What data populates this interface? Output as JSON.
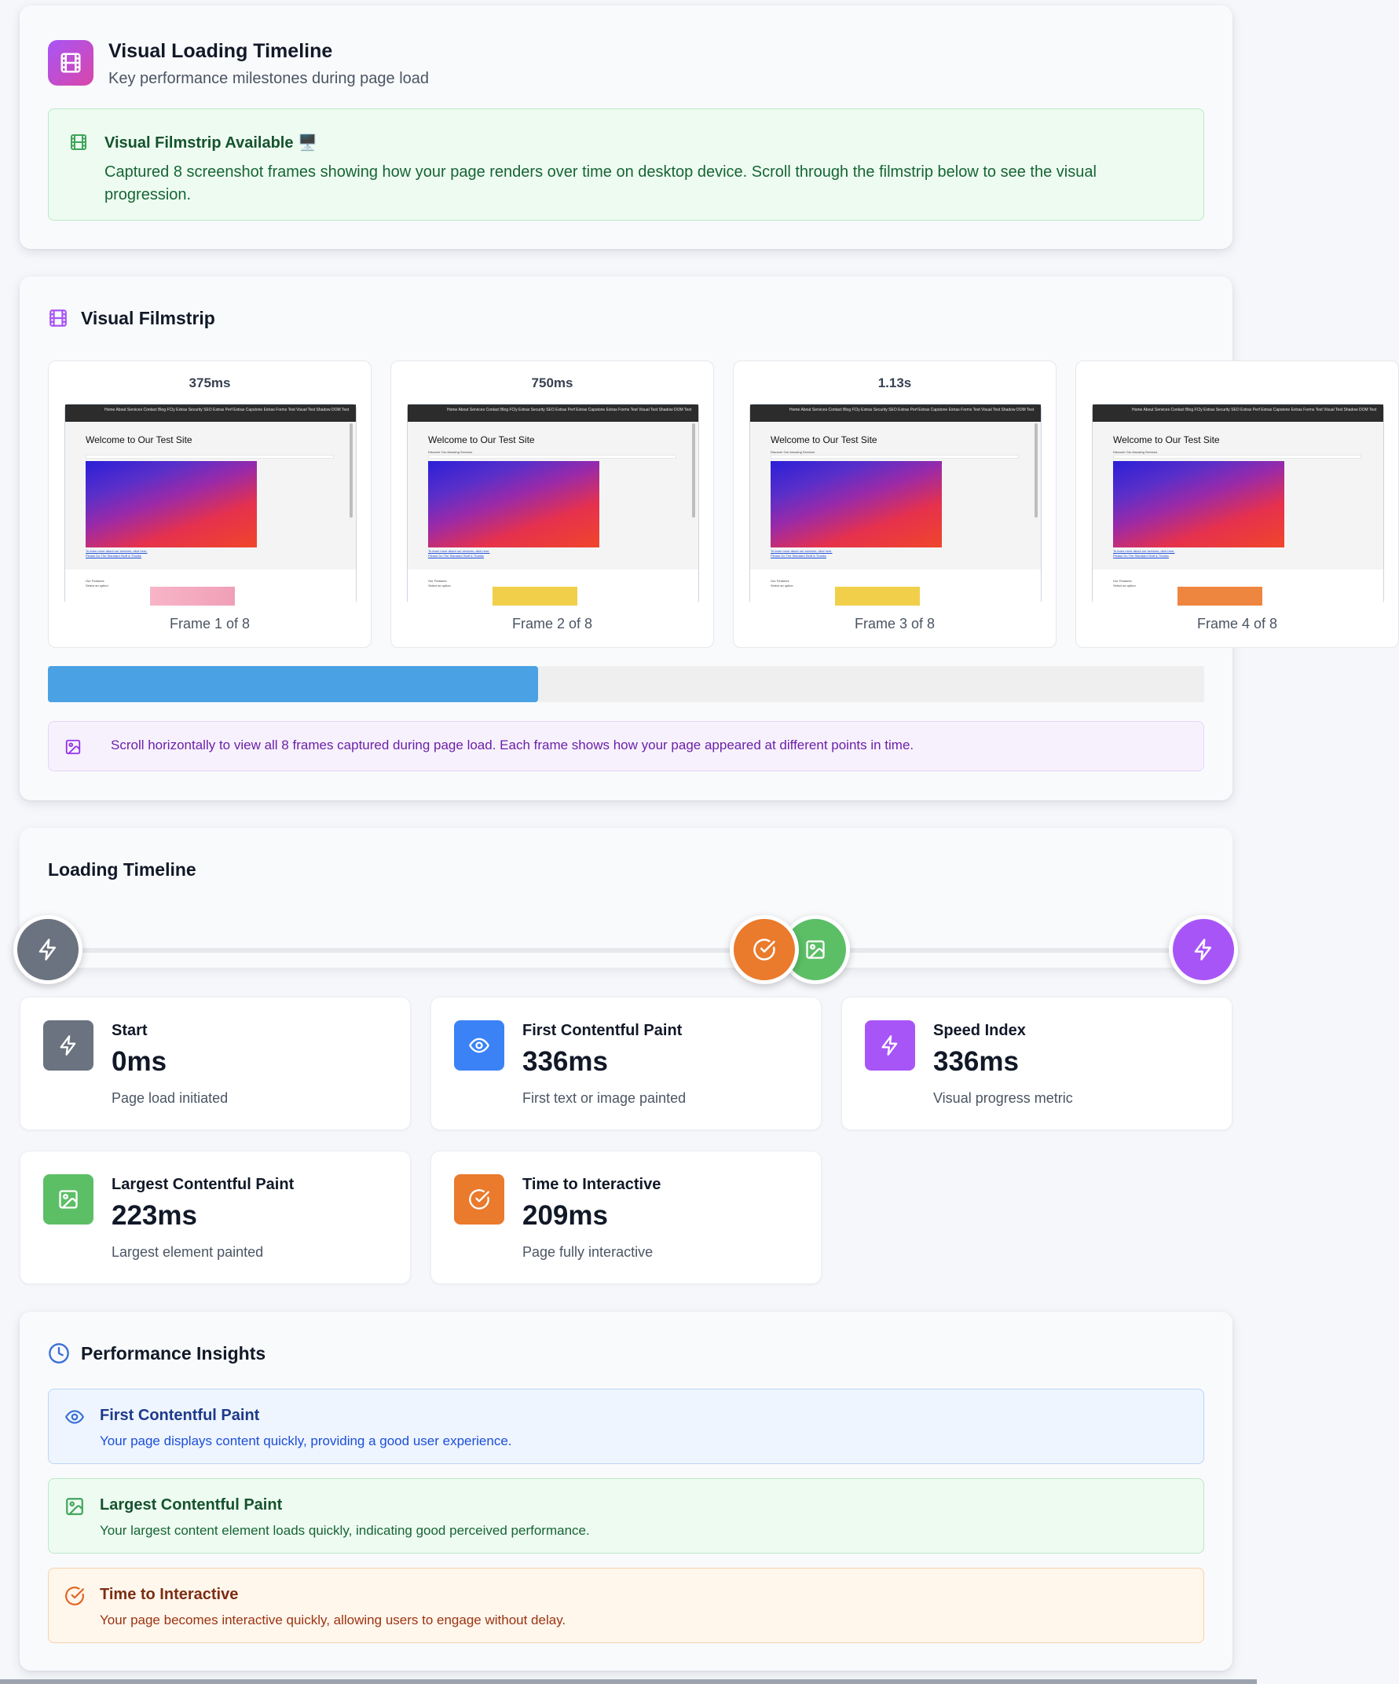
{
  "header": {
    "title": "Visual Loading Timeline",
    "subtitle": "Key performance milestones during page load",
    "icon": "film-icon"
  },
  "filmstrip_notice": {
    "title": "Visual Filmstrip Available 🖥️",
    "description": "Captured 8 screenshot frames showing how your page renders over time on desktop device. Scroll through the filmstrip below to see the visual progression."
  },
  "filmstrip": {
    "title": "Visual Filmstrip",
    "frames": [
      {
        "time": "375ms",
        "label": "Frame 1 of 8"
      },
      {
        "time": "750ms",
        "label": "Frame 2 of 8"
      },
      {
        "time": "1.13s",
        "label": "Frame 3 of 8"
      },
      {
        "time": "",
        "label": "Frame 4 of 8"
      }
    ],
    "screenshot": {
      "nav": "Home  About  Services  Contact  Blog  FCly Extras  Security  SEO Extras  Perf Extras  Capstone Extras  Forms Test  Visual Test  Shadow DOM Test",
      "welcome": "Welcome to Our Test Site",
      "subtext": "Discover Our Amazing Services",
      "links": "To learn more about our services, click here.",
      "links2": "Please Do The Standard Stuff & Thanks",
      "footer_text": "Our Features",
      "footer_sub": "Select an option"
    },
    "scroll_progress": 0.424,
    "hint": "Scroll horizontally to view all 8 frames captured during page load. Each frame shows how your page appeared at different points in time."
  },
  "timeline": {
    "title": "Loading Timeline",
    "metrics": [
      {
        "title": "Start",
        "value": "0ms",
        "description": "Page load initiated",
        "color": "#6b7280",
        "icon": "lightning-icon"
      },
      {
        "title": "First Contentful Paint",
        "value": "336ms",
        "description": "First text or image painted",
        "color": "#3b82f6",
        "icon": "eye-icon"
      },
      {
        "title": "Speed Index",
        "value": "336ms",
        "description": "Visual progress metric",
        "color": "#a855f7",
        "icon": "lightning-icon"
      },
      {
        "title": "Largest Contentful Paint",
        "value": "223ms",
        "description": "Largest element painted",
        "color": "#5cbf66",
        "icon": "image-icon"
      },
      {
        "title": "Time to Interactive",
        "value": "209ms",
        "description": "Page fully interactive",
        "color": "#ea7a2c",
        "icon": "check-circle-icon"
      }
    ]
  },
  "insights": {
    "title": "Performance Insights",
    "items": [
      {
        "title": "First Contentful Paint",
        "description": "Your page displays content quickly, providing a good user experience.",
        "icon": "eye-icon"
      },
      {
        "title": "Largest Contentful Paint",
        "description": "Your largest content element loads quickly, indicating good perceived performance.",
        "icon": "image-icon"
      },
      {
        "title": "Time to Interactive",
        "description": "Your page becomes interactive quickly, allowing users to engage without delay.",
        "icon": "check-circle-icon"
      }
    ]
  }
}
